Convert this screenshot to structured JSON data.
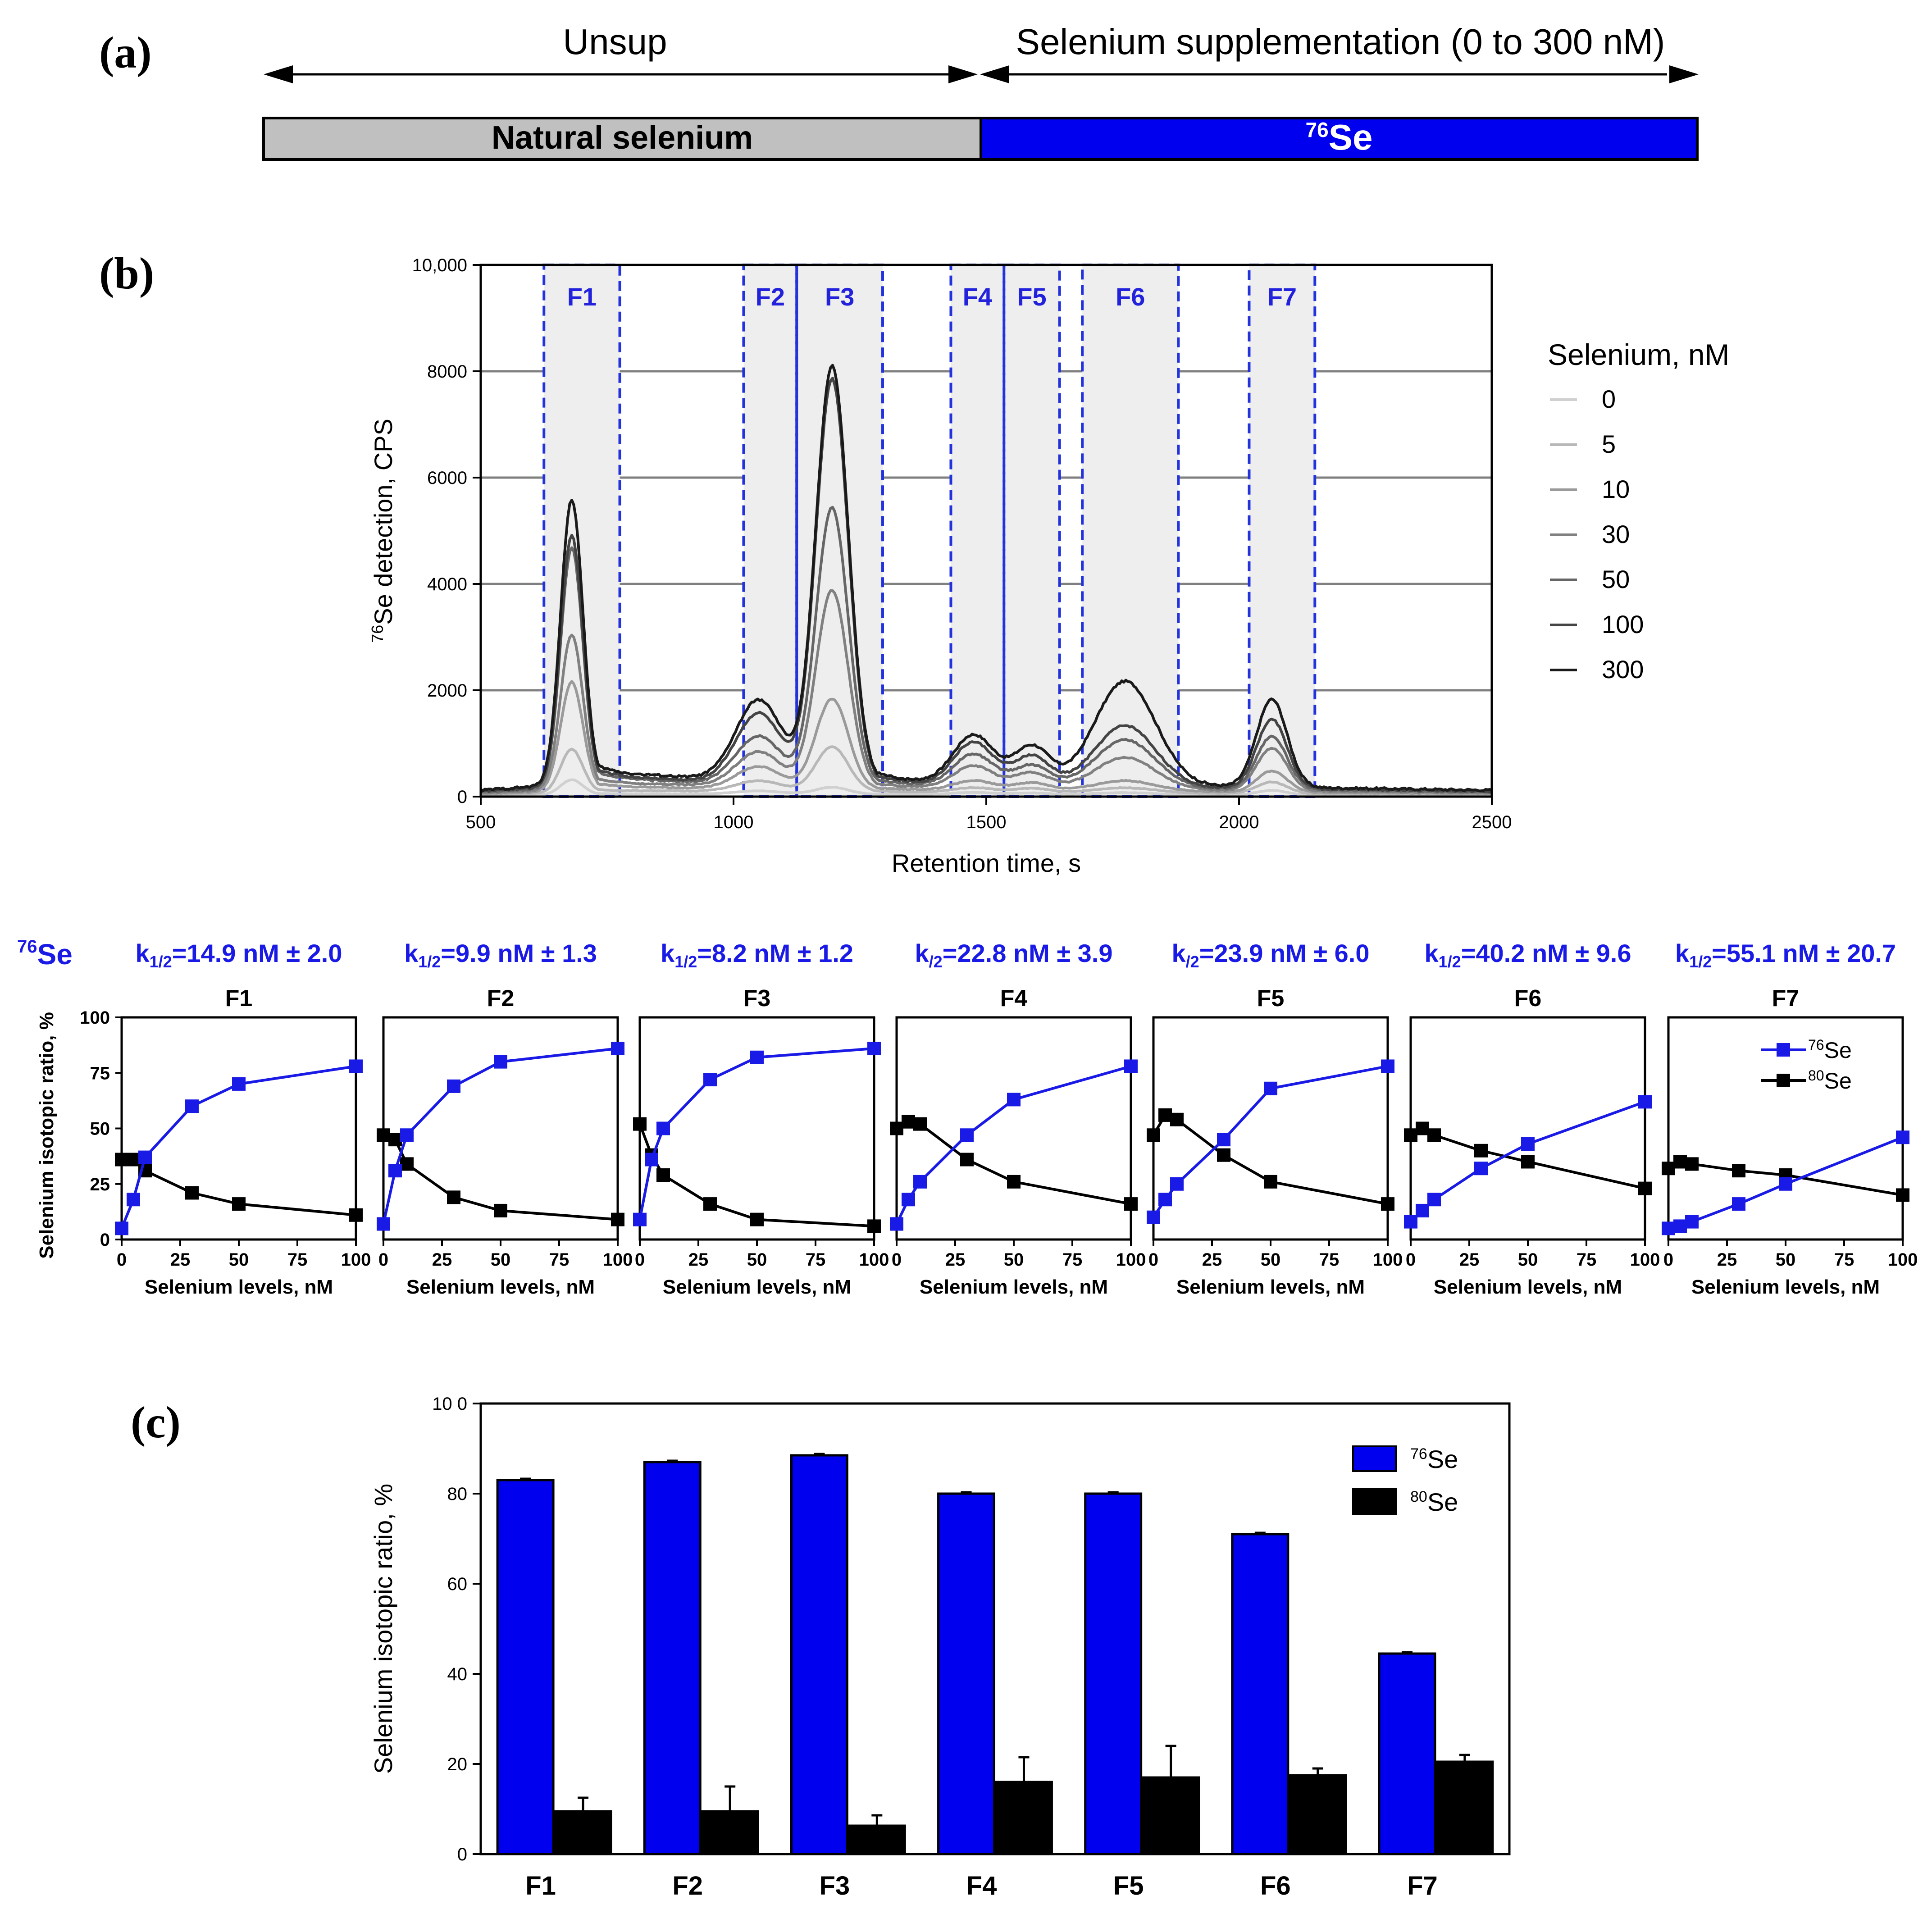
{
  "panel_a": {
    "label": "(a)",
    "unsup_label": "Unsup",
    "supplementation_label": "Selenium supplementation (0 to 300 nM)",
    "natural_bar_label": "Natural selenium",
    "isotope_bar_mass": "76",
    "isotope_bar_symbol": "Se",
    "colors": {
      "natural": "#c0c0c0",
      "isotope": "#0000ee"
    }
  },
  "panel_b": {
    "label": "(b)",
    "legend_title": "Selenium, nM",
    "isotope_header_mass": "76",
    "isotope_header_symbol": "Se",
    "fraction_colors": {
      "box": "#2233dd",
      "shade": "#eeeeee"
    },
    "small_xlabel": "Selenium levels, nM",
    "small_ylabel": "Selenium isotopic ratio, %",
    "small_legend": [
      {
        "mass": "76",
        "symbol": "Se",
        "color": "#1a1ae6"
      },
      {
        "mass": "80",
        "symbol": "Se",
        "color": "#000000"
      }
    ],
    "kinetics": [
      {
        "k": "k",
        "sub": "1/2",
        "rest": "=14.9 nM ± 2.0"
      },
      {
        "k": "k",
        "sub": "1/2",
        "rest": "=9.9 nM ± 1.3"
      },
      {
        "k": "k",
        "sub": "1/2",
        "rest": "=8.2 nM ± 1.2"
      },
      {
        "k": "k",
        "sub": "/2",
        "rest": "=22.8 nM ± 3.9"
      },
      {
        "k": "k",
        "sub": "/2",
        "rest": "=23.9 nM ± 6.0"
      },
      {
        "k": "k",
        "sub": "1/2",
        "rest": "=40.2 nM ± 9.6"
      },
      {
        "k": "k",
        "sub": "1/2",
        "rest": "=55.1 nM ± 20.7"
      }
    ]
  },
  "panel_c": {
    "label": "(c)"
  },
  "chart_data": [
    {
      "id": "chromatogram",
      "type": "line",
      "title": "",
      "xlabel": "Retention time, s",
      "ylabel_mass": "76",
      "ylabel_rest": "Se detection, CPS",
      "xlim": [
        500,
        2500
      ],
      "ylim": [
        0,
        10000
      ],
      "xticks": [
        500,
        1000,
        1500,
        2000,
        2500
      ],
      "xtick_labels": [
        "500",
        "1000",
        "1500",
        "2000",
        "2500"
      ],
      "yticks": [
        0,
        2000,
        4000,
        6000,
        8000,
        10000
      ],
      "ytick_labels": [
        "0",
        "2000",
        "4000",
        "6000",
        "8000",
        "10,000"
      ],
      "grid": true,
      "legend_position": "right",
      "fractions": [
        {
          "name": "F1",
          "start": 625,
          "end": 775
        },
        {
          "name": "F2",
          "start": 1020,
          "end": 1125
        },
        {
          "name": "F3",
          "start": 1125,
          "end": 1295
        },
        {
          "name": "F4",
          "start": 1430,
          "end": 1535
        },
        {
          "name": "F5",
          "start": 1535,
          "end": 1645
        },
        {
          "name": "F6",
          "start": 1690,
          "end": 1880
        },
        {
          "name": "F7",
          "start": 2020,
          "end": 2150
        }
      ],
      "peaks": [
        {
          "center": 680,
          "sigma": 22,
          "tail": 70
        },
        {
          "center": 1050,
          "sigma": 45,
          "tail": 0
        },
        {
          "center": 1195,
          "sigma": 32,
          "tail": 50
        },
        {
          "center": 1475,
          "sigma": 40,
          "tail": 0
        },
        {
          "center": 1590,
          "sigma": 35,
          "tail": 0
        },
        {
          "center": 1775,
          "sigma": 60,
          "tail": 0
        },
        {
          "center": 2065,
          "sigma": 30,
          "tail": 0
        }
      ],
      "baseline": {
        "start": 500,
        "value_at_start": 120,
        "mid": 850,
        "value_at_mid": 350,
        "end": 2500,
        "value_at_end": 120
      },
      "series": [
        {
          "name": "0",
          "color": "#d0d0d0",
          "peak_heights": [
            280,
            60,
            130,
            40,
            30,
            40,
            90
          ],
          "base_scale": 0.15
        },
        {
          "name": "5",
          "color": "#b8b8b8",
          "peak_heights": [
            820,
            200,
            850,
            90,
            80,
            100,
            220
          ],
          "base_scale": 0.3
        },
        {
          "name": "10",
          "color": "#9a9a9a",
          "peak_heights": [
            2050,
            420,
            1700,
            180,
            150,
            200,
            400
          ],
          "base_scale": 0.45
        },
        {
          "name": "30",
          "color": "#808080",
          "peak_heights": [
            2900,
            650,
            3700,
            420,
            300,
            600,
            800
          ],
          "base_scale": 0.6
        },
        {
          "name": "50",
          "color": "#666666",
          "peak_heights": [
            4500,
            900,
            5200,
            600,
            400,
            900,
            1000
          ],
          "base_scale": 0.75
        },
        {
          "name": "100",
          "color": "#444444",
          "peak_heights": [
            4700,
            1300,
            7600,
            800,
            550,
            1150,
            1300
          ],
          "base_scale": 0.85
        },
        {
          "name": "300",
          "color": "#1a1a1a",
          "peak_heights": [
            5350,
            1500,
            7800,
            900,
            700,
            1950,
            1650
          ],
          "base_scale": 1.0
        }
      ]
    },
    {
      "id": "isotopic-ratio-panels",
      "type": "line",
      "x": [
        0,
        5,
        10,
        30,
        50,
        100
      ],
      "xlim": [
        0,
        100
      ],
      "ylim": [
        0,
        100
      ],
      "xticks": [
        0,
        25,
        50,
        75,
        100
      ],
      "yticks": [
        0,
        25,
        50,
        75,
        100
      ],
      "xlabel": "Selenium levels, nM",
      "ylabel": "Selenium isotopic ratio, %",
      "legend_position": "top-right",
      "panels": [
        {
          "name": "F1",
          "series": [
            {
              "name": "76Se",
              "color": "#1a1ae6",
              "values": [
                5,
                18,
                37,
                60,
                70,
                78
              ]
            },
            {
              "name": "80Se",
              "color": "#000000",
              "values": [
                36,
                36,
                31,
                21,
                16,
                11
              ]
            }
          ]
        },
        {
          "name": "F2",
          "series": [
            {
              "name": "76Se",
              "color": "#1a1ae6",
              "values": [
                7,
                31,
                47,
                69,
                80,
                86
              ]
            },
            {
              "name": "80Se",
              "color": "#000000",
              "values": [
                47,
                45,
                34,
                19,
                13,
                9
              ]
            }
          ]
        },
        {
          "name": "F3",
          "series": [
            {
              "name": "76Se",
              "color": "#1a1ae6",
              "values": [
                9,
                36,
                50,
                72,
                82,
                86
              ]
            },
            {
              "name": "80Se",
              "color": "#000000",
              "values": [
                52,
                38,
                29,
                16,
                9,
                6
              ]
            }
          ]
        },
        {
          "name": "F4",
          "series": [
            {
              "name": "76Se",
              "color": "#1a1ae6",
              "values": [
                7,
                18,
                26,
                47,
                63,
                78
              ]
            },
            {
              "name": "80Se",
              "color": "#000000",
              "values": [
                50,
                53,
                52,
                36,
                26,
                16
              ]
            }
          ]
        },
        {
          "name": "F5",
          "series": [
            {
              "name": "76Se",
              "color": "#1a1ae6",
              "values": [
                10,
                18,
                25,
                45,
                68,
                78
              ]
            },
            {
              "name": "80Se",
              "color": "#000000",
              "values": [
                47,
                56,
                54,
                38,
                26,
                16
              ]
            }
          ]
        },
        {
          "name": "F6",
          "series": [
            {
              "name": "76Se",
              "color": "#1a1ae6",
              "values": [
                8,
                13,
                18,
                32,
                43,
                62
              ]
            },
            {
              "name": "80Se",
              "color": "#000000",
              "values": [
                47,
                50,
                47,
                40,
                35,
                23
              ]
            }
          ]
        },
        {
          "name": "F7",
          "series": [
            {
              "name": "76Se",
              "color": "#1a1ae6",
              "values": [
                5,
                6,
                8,
                16,
                25,
                46
              ]
            },
            {
              "name": "80Se",
              "color": "#000000",
              "values": [
                32,
                35,
                34,
                31,
                29,
                20
              ]
            }
          ]
        }
      ]
    },
    {
      "id": "isotopic-ratio-bars",
      "type": "bar",
      "title": "",
      "categories": [
        "F1",
        "F2",
        "F3",
        "F4",
        "F5",
        "F6",
        "F7"
      ],
      "ylabel": "Selenium isotopic ratio, %",
      "ylim": [
        0,
        100
      ],
      "yticks": [
        0,
        20,
        40,
        60,
        80,
        100
      ],
      "ytick_labels": [
        "0",
        "20",
        "40",
        "60",
        "80",
        "10 0"
      ],
      "legend_position": "top-right",
      "series": [
        {
          "name": "76Se",
          "mass": "76",
          "symbol": "Se",
          "color": "#0000ee",
          "values": [
            83,
            87,
            88.5,
            80,
            80,
            71,
            44.5
          ],
          "errors": [
            0.3,
            0.3,
            0.3,
            0.3,
            0.3,
            0.3,
            0.3
          ]
        },
        {
          "name": "80Se",
          "mass": "80",
          "symbol": "Se",
          "color": "#000000",
          "values": [
            9.5,
            9.5,
            6.3,
            16,
            17,
            17.5,
            20.5
          ],
          "errors": [
            3,
            5.5,
            2.3,
            5.5,
            7,
            1.5,
            1.5
          ]
        }
      ]
    }
  ]
}
